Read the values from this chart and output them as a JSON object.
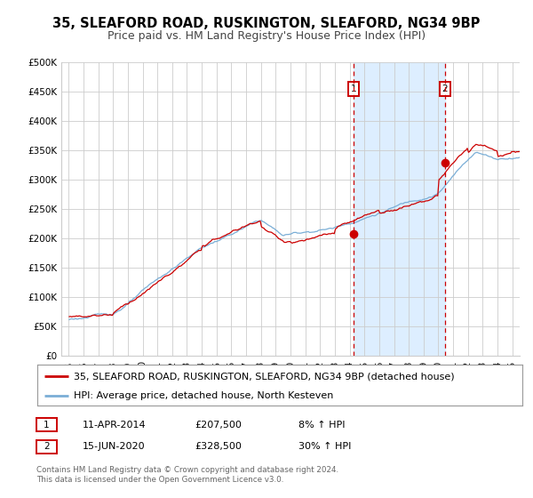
{
  "title": "35, SLEAFORD ROAD, RUSKINGTON, SLEAFORD, NG34 9BP",
  "subtitle": "Price paid vs. HM Land Registry's House Price Index (HPI)",
  "legend_line1": "35, SLEAFORD ROAD, RUSKINGTON, SLEAFORD, NG34 9BP (detached house)",
  "legend_line2": "HPI: Average price, detached house, North Kesteven",
  "footnote1": "Contains HM Land Registry data © Crown copyright and database right 2024.",
  "footnote2": "This data is licensed under the Open Government Licence v3.0.",
  "transaction1_label": "1",
  "transaction1_date": "11-APR-2014",
  "transaction1_price": "£207,500",
  "transaction1_hpi": "8% ↑ HPI",
  "transaction2_label": "2",
  "transaction2_date": "15-JUN-2020",
  "transaction2_price": "£328,500",
  "transaction2_hpi": "30% ↑ HPI",
  "transaction1_x": 2014.27,
  "transaction1_y": 207500,
  "transaction2_x": 2020.45,
  "transaction2_y": 328500,
  "vline1_x": 2014.27,
  "vline2_x": 2020.45,
  "shade_between_x1": 2014.27,
  "shade_between_x2": 2020.45,
  "red_color": "#cc0000",
  "blue_color": "#7aaed6",
  "shade_color": "#ddeeff",
  "background_color": "#ffffff",
  "grid_color": "#cccccc",
  "ylim": [
    0,
    500000
  ],
  "xlim_start": 1994.5,
  "xlim_end": 2025.5,
  "yticks": [
    0,
    50000,
    100000,
    150000,
    200000,
    250000,
    300000,
    350000,
    400000,
    450000,
    500000
  ],
  "ytick_labels": [
    "£0",
    "£50K",
    "£100K",
    "£150K",
    "£200K",
    "£250K",
    "£300K",
    "£350K",
    "£400K",
    "£450K",
    "£500K"
  ],
  "xticks": [
    1995,
    1996,
    1997,
    1998,
    1999,
    2000,
    2001,
    2002,
    2003,
    2004,
    2005,
    2006,
    2007,
    2008,
    2009,
    2010,
    2011,
    2012,
    2013,
    2014,
    2015,
    2016,
    2017,
    2018,
    2019,
    2020,
    2021,
    2022,
    2023,
    2024,
    2025
  ],
  "title_fontsize": 10.5,
  "subtitle_fontsize": 9,
  "axis_fontsize": 7.5,
  "legend_fontsize": 8
}
